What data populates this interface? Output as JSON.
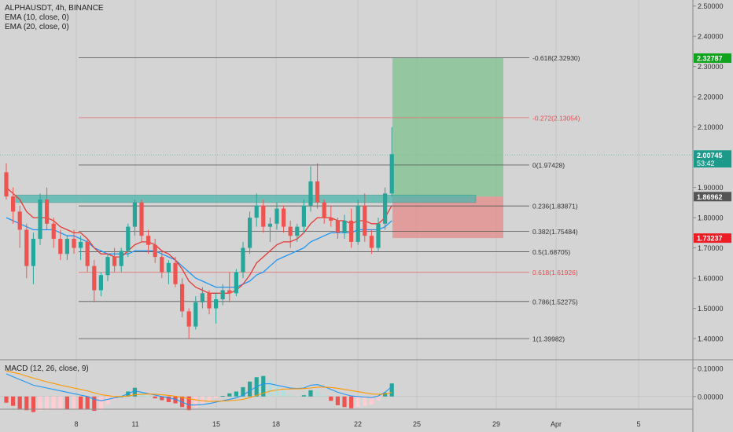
{
  "header": {
    "symbol_line": "ALPHAUSDT, 4h, BINANCE",
    "ema10_label": "EMA (10, close, 0)",
    "ema20_label": "EMA (20, close, 0)",
    "macd_label": "MACD (12, 26, close, 9)"
  },
  "colors": {
    "bull": "#26a69a",
    "bear": "#ef5350",
    "ema10": "#e53935",
    "ema20": "#2196f3",
    "macd": "#2196f3",
    "signal": "#ff9800",
    "target_zone": "#7fc28f",
    "stop_zone": "#e58a8a",
    "resistance_band": "#4db6ac",
    "price_tag_current": "#1b9a8a",
    "price_tag_target": "#10a31c",
    "price_tag_stop": "#ee1c25",
    "price_tag_level": "#555555"
  },
  "chart_data": [
    {
      "type": "candlestick",
      "title": "ALPHAUSDT, 4h, BINANCE",
      "ylim": [
        1.33,
        2.52
      ],
      "y_ticks": [
        "2.50000",
        "2.40000",
        "2.30000",
        "2.20000",
        "2.10000",
        "2.00000",
        "1.90000",
        "1.80000",
        "1.70000",
        "1.60000",
        "1.50000",
        "1.40000"
      ],
      "x_ticks": [
        "8",
        "11",
        "15",
        "18",
        "22",
        "25",
        "29",
        "Apr",
        "5"
      ],
      "candles": [
        [
          1.95,
          1.98,
          1.86,
          1.87
        ],
        [
          1.87,
          1.9,
          1.78,
          1.82
        ],
        [
          1.82,
          1.84,
          1.7,
          1.76
        ],
        [
          1.76,
          1.78,
          1.6,
          1.64
        ],
        [
          1.64,
          1.75,
          1.58,
          1.73
        ],
        [
          1.73,
          1.88,
          1.71,
          1.86
        ],
        [
          1.86,
          1.9,
          1.76,
          1.78
        ],
        [
          1.78,
          1.8,
          1.7,
          1.73
        ],
        [
          1.73,
          1.76,
          1.66,
          1.68
        ],
        [
          1.68,
          1.74,
          1.66,
          1.73
        ],
        [
          1.73,
          1.76,
          1.68,
          1.7
        ],
        [
          1.7,
          1.74,
          1.66,
          1.72
        ],
        [
          1.72,
          1.73,
          1.62,
          1.64
        ],
        [
          1.64,
          1.66,
          1.52,
          1.56
        ],
        [
          1.56,
          1.62,
          1.54,
          1.61
        ],
        [
          1.61,
          1.68,
          1.59,
          1.67
        ],
        [
          1.67,
          1.7,
          1.62,
          1.64
        ],
        [
          1.64,
          1.7,
          1.62,
          1.69
        ],
        [
          1.69,
          1.78,
          1.67,
          1.77
        ],
        [
          1.77,
          1.86,
          1.74,
          1.85
        ],
        [
          1.85,
          1.86,
          1.72,
          1.74
        ],
        [
          1.74,
          1.76,
          1.68,
          1.71
        ],
        [
          1.71,
          1.73,
          1.65,
          1.67
        ],
        [
          1.67,
          1.69,
          1.6,
          1.62
        ],
        [
          1.62,
          1.66,
          1.58,
          1.65
        ],
        [
          1.65,
          1.67,
          1.57,
          1.58
        ],
        [
          1.58,
          1.6,
          1.47,
          1.49
        ],
        [
          1.49,
          1.5,
          1.4,
          1.44
        ],
        [
          1.44,
          1.54,
          1.43,
          1.52
        ],
        [
          1.52,
          1.57,
          1.5,
          1.55
        ],
        [
          1.55,
          1.56,
          1.48,
          1.5
        ],
        [
          1.5,
          1.55,
          1.45,
          1.53
        ],
        [
          1.53,
          1.58,
          1.51,
          1.56
        ],
        [
          1.56,
          1.62,
          1.52,
          1.55
        ],
        [
          1.55,
          1.63,
          1.54,
          1.62
        ],
        [
          1.62,
          1.72,
          1.6,
          1.7
        ],
        [
          1.7,
          1.82,
          1.68,
          1.8
        ],
        [
          1.8,
          1.88,
          1.77,
          1.84
        ],
        [
          1.84,
          1.86,
          1.75,
          1.77
        ],
        [
          1.77,
          1.8,
          1.72,
          1.78
        ],
        [
          1.78,
          1.85,
          1.76,
          1.83
        ],
        [
          1.83,
          1.84,
          1.75,
          1.77
        ],
        [
          1.77,
          1.79,
          1.7,
          1.74
        ],
        [
          1.74,
          1.78,
          1.72,
          1.77
        ],
        [
          1.77,
          1.86,
          1.75,
          1.84
        ],
        [
          1.84,
          1.97,
          1.82,
          1.92
        ],
        [
          1.92,
          1.98,
          1.83,
          1.85
        ],
        [
          1.85,
          1.86,
          1.78,
          1.8
        ],
        [
          1.8,
          1.84,
          1.77,
          1.79
        ],
        [
          1.79,
          1.8,
          1.73,
          1.75
        ],
        [
          1.75,
          1.81,
          1.73,
          1.79
        ],
        [
          1.79,
          1.83,
          1.7,
          1.72
        ],
        [
          1.72,
          1.86,
          1.71,
          1.84
        ],
        [
          1.84,
          1.88,
          1.72,
          1.74
        ],
        [
          1.74,
          1.76,
          1.68,
          1.7
        ],
        [
          1.7,
          1.8,
          1.69,
          1.78
        ],
        [
          1.78,
          1.9,
          1.76,
          1.88
        ],
        [
          1.88,
          2.1,
          1.87,
          2.01
        ]
      ],
      "ema10": [
        1.9,
        1.88,
        1.86,
        1.82,
        1.8,
        1.8,
        1.8,
        1.79,
        1.77,
        1.76,
        1.75,
        1.75,
        1.73,
        1.7,
        1.68,
        1.68,
        1.67,
        1.67,
        1.69,
        1.71,
        1.72,
        1.72,
        1.71,
        1.69,
        1.68,
        1.66,
        1.63,
        1.59,
        1.57,
        1.56,
        1.55,
        1.55,
        1.55,
        1.55,
        1.56,
        1.58,
        1.61,
        1.65,
        1.67,
        1.69,
        1.71,
        1.72,
        1.72,
        1.73,
        1.75,
        1.78,
        1.8,
        1.8,
        1.8,
        1.79,
        1.79,
        1.78,
        1.79,
        1.79,
        1.78,
        1.78,
        1.8,
        1.84
      ],
      "ema20": [
        1.8,
        1.79,
        1.78,
        1.77,
        1.76,
        1.76,
        1.76,
        1.76,
        1.75,
        1.74,
        1.74,
        1.73,
        1.72,
        1.7,
        1.69,
        1.68,
        1.68,
        1.68,
        1.68,
        1.69,
        1.69,
        1.69,
        1.69,
        1.68,
        1.67,
        1.66,
        1.64,
        1.62,
        1.6,
        1.59,
        1.58,
        1.57,
        1.57,
        1.57,
        1.57,
        1.58,
        1.59,
        1.61,
        1.62,
        1.64,
        1.66,
        1.67,
        1.68,
        1.69,
        1.7,
        1.72,
        1.73,
        1.74,
        1.75,
        1.75,
        1.75,
        1.75,
        1.76,
        1.76,
        1.76,
        1.76,
        1.77,
        1.79
      ]
    },
    {
      "type": "line",
      "title": "MACD (12, 26, close, 9)",
      "ylim": [
        -0.045,
        0.13
      ],
      "y_ticks": [
        "0.10000",
        "0.00000"
      ],
      "macd": [
        0.08,
        0.07,
        0.06,
        0.05,
        0.04,
        0.035,
        0.03,
        0.025,
        0.02,
        0.015,
        0.01,
        0.005,
        0.0,
        -0.01,
        -0.015,
        -0.01,
        -0.005,
        0.0,
        0.01,
        0.02,
        0.015,
        0.01,
        0.005,
        0.0,
        -0.005,
        -0.01,
        -0.02,
        -0.03,
        -0.03,
        -0.028,
        -0.025,
        -0.02,
        -0.015,
        -0.01,
        -0.005,
        0.005,
        0.02,
        0.035,
        0.045,
        0.045,
        0.04,
        0.035,
        0.03,
        0.028,
        0.03,
        0.04,
        0.042,
        0.035,
        0.025,
        0.015,
        0.008,
        0.002,
        0.0,
        -0.002,
        -0.004,
        0.002,
        0.015,
        0.035
      ],
      "signal": [
        0.09,
        0.085,
        0.08,
        0.072,
        0.065,
        0.058,
        0.052,
        0.046,
        0.04,
        0.035,
        0.03,
        0.025,
        0.02,
        0.013,
        0.007,
        0.003,
        0.0,
        0.0,
        0.002,
        0.006,
        0.008,
        0.009,
        0.008,
        0.006,
        0.004,
        0.001,
        -0.003,
        -0.008,
        -0.012,
        -0.015,
        -0.017,
        -0.017,
        -0.016,
        -0.015,
        -0.013,
        -0.01,
        -0.004,
        0.004,
        0.012,
        0.019,
        0.023,
        0.026,
        0.027,
        0.027,
        0.028,
        0.03,
        0.033,
        0.033,
        0.032,
        0.029,
        0.025,
        0.021,
        0.017,
        0.013,
        0.009,
        0.008,
        0.009,
        0.014
      ]
    }
  ],
  "fib_levels": [
    {
      "label": "-0.618(2.32930)",
      "price": 2.3293,
      "color": "#555555"
    },
    {
      "label": "-0.272(2.13054)",
      "price": 2.13054,
      "color": "#e57373"
    },
    {
      "label": "0(1.97428)",
      "price": 1.97428,
      "color": "#555555"
    },
    {
      "label": "0.236(1.83871)",
      "price": 1.83871,
      "color": "#555555"
    },
    {
      "label": "0.382(1.75484)",
      "price": 1.75484,
      "color": "#555555"
    },
    {
      "label": "0.5(1.68705)",
      "price": 1.68705,
      "color": "#555555"
    },
    {
      "label": "0.618(1.61926)",
      "price": 1.61926,
      "color": "#e57373"
    },
    {
      "label": "0.786(1.52275)",
      "price": 1.52275,
      "color": "#555555"
    },
    {
      "label": "1(1.39982)",
      "price": 1.39982,
      "color": "#555555"
    }
  ],
  "price_tags": {
    "target": "2.32787",
    "current": "2.00745",
    "countdown": "53:42",
    "level": "1.86962",
    "stop": "1.73237"
  },
  "position_tool": {
    "entry": 1.8696,
    "target": 2.32787,
    "stop": 1.73237
  },
  "resistance_zone": [
    1.85,
    1.875
  ]
}
